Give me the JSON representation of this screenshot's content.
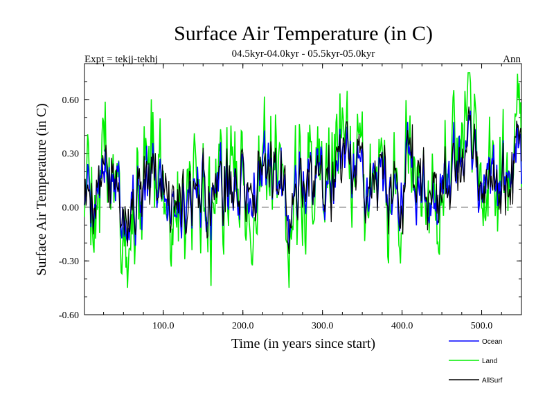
{
  "chart_data": {
    "type": "line",
    "title": "Surface Air Temperature (in C)",
    "subtitle": "04.5kyr-04.0kyr - 05.5kyr-05.0kyr",
    "left_label": "Expt = tekjj-tekhj",
    "right_label": "Ann",
    "xlabel": "Time (in years since start)",
    "ylabel": "Surface Air Temperature (in C)",
    "xlim": [
      1,
      550
    ],
    "ylim": [
      -0.6,
      0.8
    ],
    "x_ticks": [
      100,
      200,
      300,
      400,
      500
    ],
    "x_tick_labels": [
      "100.0",
      "200.0",
      "300.0",
      "400.0",
      "500.0"
    ],
    "y_ticks": [
      -0.6,
      -0.3,
      0.0,
      0.3,
      0.6
    ],
    "y_tick_labels": [
      "-0.60",
      "-0.30",
      "0.00",
      "0.30",
      "0.60"
    ],
    "reference_line": 0.0,
    "legend_position": "bottom-right",
    "series": [
      {
        "name": "Ocean",
        "color": "#0000ff",
        "base": 0.13,
        "noise": 0.07,
        "seed": 11
      },
      {
        "name": "Land",
        "color": "#00ee00",
        "base": 0.16,
        "noise": 0.17,
        "seed": 23
      },
      {
        "name": "AllSurf",
        "color": "#000000",
        "base": 0.14,
        "noise": 0.09,
        "seed": 37
      }
    ]
  }
}
